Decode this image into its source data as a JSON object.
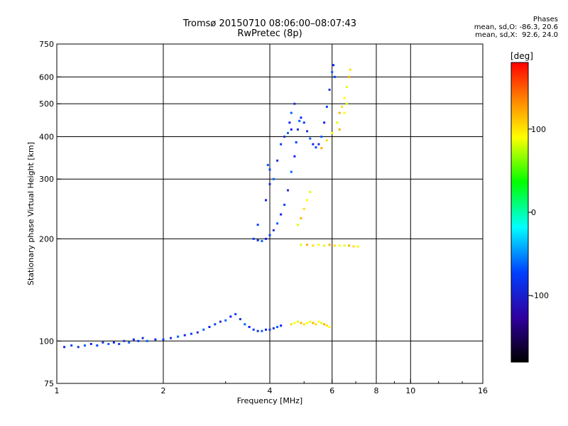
{
  "title": "Tromsø 20150710 08:06:00–08:07:43",
  "subtitle": "RwPretec (8p)",
  "phases": {
    "header": "Phases",
    "o_line": "mean, sd,O: -86.3, 20.6",
    "x_line": "mean, sd,X:  92.6, 24.0"
  },
  "colorbar": {
    "label": "[deg]",
    "ticks": [
      "100",
      "0",
      "-100"
    ],
    "range": [
      -180,
      180
    ],
    "tick_values": [
      100,
      0,
      -100
    ]
  },
  "chart_data": {
    "type": "scatter",
    "xlabel": "Frequency [MHz]",
    "ylabel": "Stationary phase Virtual Height [km]",
    "x_scale": "log",
    "y_scale": "log",
    "xlim": [
      1,
      16
    ],
    "ylim": [
      75,
      750
    ],
    "x_ticks": [
      1,
      2,
      4,
      6,
      8,
      10,
      16
    ],
    "x_tick_labels": [
      "1",
      "2",
      "4",
      "6",
      "8",
      "10",
      "16"
    ],
    "x_gridlines": [
      2,
      4,
      6,
      8,
      10
    ],
    "y_ticks": [
      75,
      100,
      200,
      300,
      400,
      500,
      600,
      750
    ],
    "y_tick_labels": [
      "75",
      "100",
      "200",
      "300",
      "400",
      "500",
      "600",
      "750"
    ],
    "y_gridlines": [
      100,
      200,
      300,
      400,
      500,
      600
    ],
    "grid": true,
    "series": [
      {
        "name": "O",
        "color_scale": "phase",
        "points": [
          [
            1.05,
            96
          ],
          [
            1.1,
            97
          ],
          [
            1.15,
            96
          ],
          [
            1.2,
            97
          ],
          [
            1.25,
            98
          ],
          [
            1.3,
            97
          ],
          [
            1.35,
            99
          ],
          [
            1.4,
            98
          ],
          [
            1.45,
            99
          ],
          [
            1.5,
            98
          ],
          [
            1.55,
            100
          ],
          [
            1.6,
            99
          ],
          [
            1.65,
            101
          ],
          [
            1.7,
            100
          ],
          [
            1.75,
            102
          ],
          [
            1.8,
            100
          ],
          [
            1.9,
            101
          ],
          [
            2.0,
            101
          ],
          [
            2.1,
            102
          ],
          [
            2.2,
            103
          ],
          [
            2.3,
            104
          ],
          [
            2.4,
            105
          ],
          [
            2.5,
            106
          ],
          [
            2.6,
            108
          ],
          [
            2.7,
            110
          ],
          [
            2.8,
            112
          ],
          [
            2.9,
            114
          ],
          [
            3.0,
            115
          ],
          [
            3.1,
            118
          ],
          [
            3.2,
            120
          ],
          [
            3.3,
            116
          ],
          [
            3.4,
            112
          ],
          [
            3.5,
            110
          ],
          [
            3.6,
            108
          ],
          [
            3.7,
            107
          ],
          [
            3.8,
            107
          ],
          [
            3.9,
            108
          ],
          [
            4.0,
            108
          ],
          [
            4.1,
            109
          ],
          [
            4.2,
            110
          ],
          [
            4.3,
            111
          ],
          [
            3.6,
            200
          ],
          [
            3.7,
            198
          ],
          [
            3.8,
            197
          ],
          [
            3.9,
            200
          ],
          [
            4.0,
            205
          ],
          [
            4.1,
            212
          ],
          [
            4.2,
            222
          ],
          [
            4.3,
            236
          ],
          [
            4.4,
            252
          ],
          [
            4.5,
            278
          ],
          [
            4.6,
            315
          ],
          [
            4.7,
            350
          ],
          [
            4.75,
            385
          ],
          [
            4.8,
            420
          ],
          [
            4.85,
            445
          ],
          [
            4.9,
            455
          ],
          [
            5.0,
            440
          ],
          [
            5.1,
            415
          ],
          [
            5.2,
            395
          ],
          [
            5.3,
            380
          ],
          [
            5.4,
            372
          ],
          [
            5.5,
            380
          ],
          [
            5.6,
            400
          ],
          [
            5.7,
            440
          ],
          [
            5.8,
            490
          ],
          [
            5.9,
            550
          ],
          [
            6.0,
            620
          ],
          [
            6.05,
            650
          ],
          [
            6.1,
            600
          ],
          [
            4.4,
            400
          ],
          [
            4.5,
            410
          ],
          [
            4.6,
            420
          ],
          [
            4.3,
            380
          ],
          [
            4.2,
            340
          ],
          [
            4.1,
            300
          ],
          [
            3.9,
            260
          ],
          [
            3.7,
            220
          ],
          [
            4.7,
            500
          ],
          [
            4.6,
            470
          ],
          [
            4.55,
            440
          ],
          [
            4.0,
            320
          ],
          [
            4.0,
            290
          ],
          [
            3.95,
            330
          ]
        ]
      },
      {
        "name": "X",
        "color_scale": "phase",
        "points": [
          [
            4.6,
            112
          ],
          [
            4.7,
            113
          ],
          [
            4.8,
            114
          ],
          [
            4.9,
            113
          ],
          [
            5.0,
            112
          ],
          [
            5.1,
            113
          ],
          [
            5.2,
            114
          ],
          [
            5.3,
            113
          ],
          [
            5.4,
            112
          ],
          [
            5.5,
            114
          ],
          [
            5.6,
            113
          ],
          [
            5.7,
            112
          ],
          [
            5.8,
            111
          ],
          [
            5.9,
            110
          ],
          [
            4.9,
            192
          ],
          [
            5.1,
            192
          ],
          [
            5.3,
            191
          ],
          [
            5.5,
            192
          ],
          [
            5.7,
            191
          ],
          [
            5.9,
            192
          ],
          [
            6.1,
            191
          ],
          [
            6.3,
            191
          ],
          [
            6.5,
            191
          ],
          [
            6.7,
            191
          ],
          [
            6.9,
            190
          ],
          [
            7.1,
            190
          ],
          [
            4.8,
            220
          ],
          [
            4.9,
            230
          ],
          [
            5.0,
            245
          ],
          [
            5.1,
            260
          ],
          [
            5.2,
            275
          ],
          [
            5.6,
            370
          ],
          [
            5.8,
            390
          ],
          [
            6.0,
            410
          ],
          [
            6.2,
            440
          ],
          [
            6.3,
            470
          ],
          [
            6.4,
            490
          ],
          [
            6.5,
            520
          ],
          [
            6.6,
            560
          ],
          [
            6.7,
            600
          ],
          [
            6.75,
            630
          ],
          [
            6.5,
            470
          ],
          [
            6.6,
            500
          ],
          [
            6.3,
            420
          ]
        ]
      }
    ]
  }
}
